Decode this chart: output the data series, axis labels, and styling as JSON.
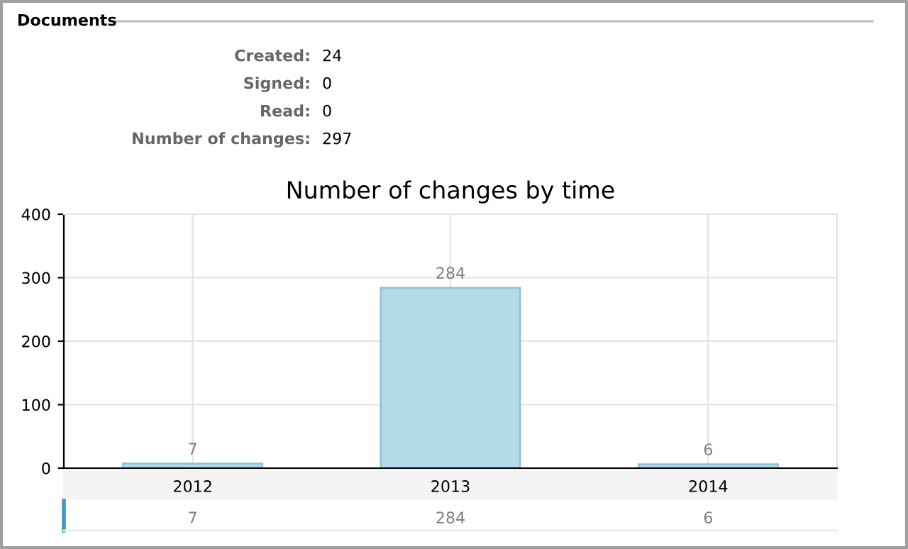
{
  "chart_data": {
    "type": "bar",
    "title": "Number of changes by time",
    "annotations": [
      "Documents",
      "Created:",
      "24",
      "Signed:",
      "0",
      "Read:",
      "0",
      "Number of changes:",
      "297",
      "7",
      "284",
      "6"
    ],
    "categories": [
      "2012",
      "2013",
      "2014"
    ],
    "values": [
      7,
      284,
      6
    ],
    "value_labels": [
      "7",
      "284",
      "6"
    ],
    "color": "#add8e6",
    "ylim": [
      0,
      400
    ],
    "yticks": [
      0,
      100,
      200,
      300,
      400
    ],
    "grid": true,
    "data_labels": true
  }
}
